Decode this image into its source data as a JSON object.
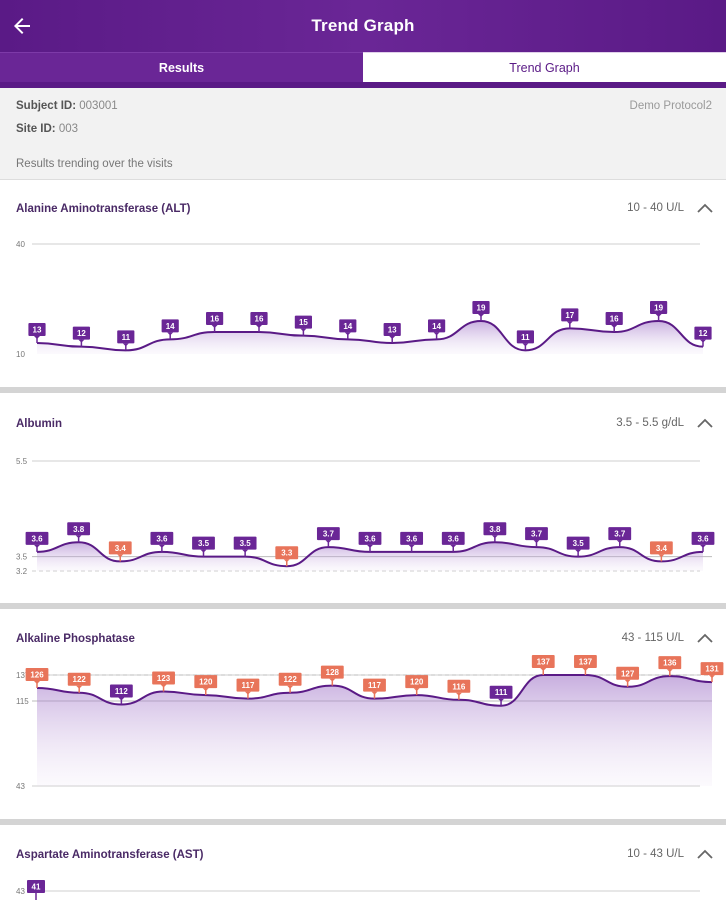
{
  "header": {
    "title": "Trend Graph"
  },
  "tabs": [
    {
      "label": "Results"
    },
    {
      "label": "Trend Graph"
    }
  ],
  "subject": {
    "subject_id_label": "Subject ID:",
    "subject_id": "003001",
    "site_id_label": "Site ID:",
    "site_id": "003",
    "protocol": "Demo Protocol2",
    "note": "Results trending over the visits"
  },
  "colors": {
    "purple": "#6a2696",
    "orange": "#e8745a",
    "header": "#5a1a86"
  },
  "charts": [
    {
      "title": "Alanine Aminotransferase (ALT)",
      "range": "10 - 40 U/L",
      "ymax_label": "40",
      "ymin_label": "10",
      "ymin": 10,
      "ymax": 40,
      "values": [
        13,
        12,
        11,
        14,
        16,
        16,
        15,
        14,
        13,
        14,
        19,
        11,
        17,
        16,
        19,
        12
      ],
      "abnormal": [
        false,
        false,
        false,
        false,
        false,
        false,
        false,
        false,
        false,
        false,
        false,
        false,
        false,
        false,
        false,
        false
      ]
    },
    {
      "title": "Albumin",
      "range": "3.5 - 5.5 g/dL",
      "ymax_label": "5.5",
      "ymin_label": "3.2",
      "mid_label": "3.5",
      "ymin": 3.2,
      "ymax": 5.5,
      "ref_low": 3.5,
      "values": [
        3.6,
        3.8,
        3.4,
        3.6,
        3.5,
        3.5,
        3.3,
        3.7,
        3.6,
        3.6,
        3.6,
        3.8,
        3.7,
        3.5,
        3.7,
        3.4,
        3.6
      ],
      "abnormal": [
        false,
        false,
        true,
        false,
        false,
        false,
        true,
        false,
        false,
        false,
        false,
        false,
        false,
        false,
        false,
        true,
        false
      ]
    },
    {
      "title": "Alkaline Phosphatase",
      "range": "43 - 115 U/L",
      "ymax_label": "137",
      "ymin_label": "43",
      "mid_label": "115",
      "ymin": 43,
      "ymax": 137,
      "ref_high": 115,
      "values": [
        126,
        122,
        112,
        123,
        120,
        117,
        122,
        128,
        117,
        120,
        116,
        111,
        137,
        137,
        127,
        136,
        131
      ],
      "abnormal": [
        true,
        true,
        false,
        true,
        true,
        true,
        true,
        true,
        true,
        true,
        true,
        false,
        true,
        true,
        true,
        true,
        true
      ]
    },
    {
      "title": "Aspartate Aminotransferase (AST)",
      "range": "10 - 43 U/L",
      "ymax_label": "43",
      "values": [
        41
      ],
      "abnormal": [
        false
      ]
    }
  ]
}
